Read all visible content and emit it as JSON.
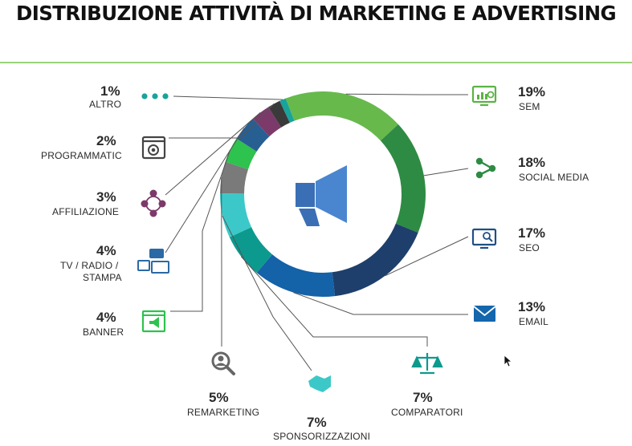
{
  "title": "DISTRIBUZIONE ATTIVITÀ DI MARKETING E ADVERTISING",
  "chart_data": {
    "type": "pie",
    "title": "DISTRIBUZIONE ATTIVITÀ DI MARKETING E ADVERTISING",
    "donut": true,
    "center_icon": "megaphone-icon",
    "slices": [
      {
        "key": "sem",
        "label": "SEM",
        "value": 19,
        "display": "19%",
        "color": "#67b94c",
        "icon": "monitor-chart-icon"
      },
      {
        "key": "social-media",
        "label": "SOCIAL MEDIA",
        "value": 18,
        "display": "18%",
        "color": "#2e8b43",
        "icon": "share-icon"
      },
      {
        "key": "seo",
        "label": "SEO",
        "value": 17,
        "display": "17%",
        "color": "#1e3f6b",
        "icon": "monitor-search-icon"
      },
      {
        "key": "email",
        "label": "EMAIL",
        "value": 13,
        "display": "13%",
        "color": "#1462a8",
        "icon": "envelope-icon"
      },
      {
        "key": "comparatori",
        "label": "COMPARATORI",
        "value": 7,
        "display": "7%",
        "color": "#0d9a8e",
        "icon": "scales-icon"
      },
      {
        "key": "sponsorizzazioni",
        "label": "SPONSORIZZAZIONI",
        "value": 7,
        "display": "7%",
        "color": "#3cc8c8",
        "icon": "handshake-icon"
      },
      {
        "key": "remarketing",
        "label": "REMARKETING",
        "value": 5,
        "display": "5%",
        "color": "#7a7a7a",
        "icon": "person-search-icon"
      },
      {
        "key": "banner",
        "label": "BANNER",
        "value": 4,
        "display": "4%",
        "color": "#2ec24e",
        "icon": "banner-megaphone-icon"
      },
      {
        "key": "tv-radio-stampa",
        "label": "TV / RADIO / STAMPA",
        "label_lines": [
          "TV / RADIO /",
          "STAMPA"
        ],
        "value": 4,
        "display": "4%",
        "color": "#275f93",
        "icon": "media-devices-icon"
      },
      {
        "key": "affiliazione",
        "label": "AFFILIAZIONE",
        "value": 3,
        "display": "3%",
        "color": "#7b3a6a",
        "icon": "network-people-icon"
      },
      {
        "key": "programmatic",
        "label": "PROGRAMMATIC",
        "value": 2,
        "display": "2%",
        "color": "#3a3a3a",
        "icon": "target-window-icon"
      },
      {
        "key": "altro",
        "label": "ALTRO",
        "value": 1,
        "display": "1%",
        "color": "#19a39a",
        "icon": "dots-icon"
      }
    ]
  }
}
